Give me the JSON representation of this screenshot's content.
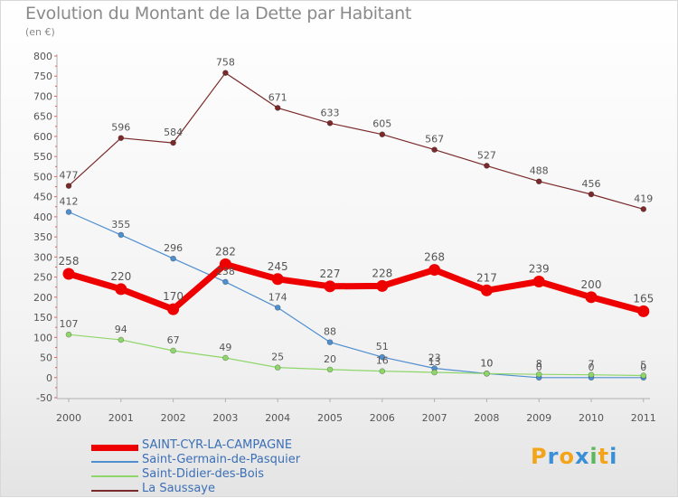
{
  "header": {
    "title": "Evolution du Montant de la Dette par Habitant",
    "unit": "(en €)"
  },
  "logo": {
    "letters": [
      "P",
      "r",
      "o",
      "x",
      "i",
      "t",
      "i"
    ],
    "colors": [
      "#f2a51a",
      "#3a8fd6",
      "#f2a51a",
      "#3a8fd6",
      "#5cb85c",
      "#f2a51a",
      "#3a8fd6"
    ]
  },
  "chart_data": {
    "type": "line",
    "title": "Evolution du Montant de la Dette par Habitant",
    "ylabel": "(en €)",
    "xlabel": "",
    "x": [
      "2000",
      "2001",
      "2002",
      "2003",
      "2004",
      "2005",
      "2006",
      "2007",
      "2008",
      "2009",
      "2010",
      "2011"
    ],
    "ylim": [
      -50,
      800
    ],
    "yticks": [
      -50,
      0,
      50,
      100,
      150,
      200,
      250,
      300,
      350,
      400,
      450,
      500,
      550,
      600,
      650,
      700,
      750,
      800
    ],
    "yticklabels": [
      "-50",
      "0",
      "50",
      "100",
      "150",
      "200",
      "250",
      "300",
      "350",
      "400",
      "450",
      "500",
      "550",
      "600",
      "650",
      "700",
      "750",
      "800"
    ],
    "grid": false,
    "legend_position": "bottom-left",
    "series": [
      {
        "name": "SAINT-CYR-LA-CAMPAGNE",
        "color": "#ee0000",
        "values": [
          258,
          220,
          170,
          282,
          245,
          227,
          228,
          268,
          217,
          239,
          200,
          165
        ],
        "labels": [
          "258",
          "220",
          "170",
          "282",
          "245",
          "227",
          "228",
          "268",
          "217",
          "239",
          "200",
          "165"
        ]
      },
      {
        "name": "Saint-Germain-de-Pasquier",
        "color": "#4f8fd0",
        "values": [
          412,
          355,
          296,
          238,
          174,
          88,
          51,
          23,
          10,
          0,
          0,
          0
        ],
        "labels": [
          "412",
          "355",
          "296",
          "238",
          "174",
          "88",
          "51",
          "23",
          "10",
          "0",
          "0",
          "0"
        ]
      },
      {
        "name": "Saint-Didier-des-Bois",
        "color": "#8ed66a",
        "values": [
          107,
          94,
          67,
          49,
          25,
          20,
          16,
          13,
          10,
          8,
          7,
          5
        ],
        "labels": [
          "107",
          "94",
          "67",
          "49",
          "25",
          "20",
          "16",
          "13",
          "10",
          "8",
          "7",
          "5"
        ]
      },
      {
        "name": "La Saussaye",
        "color": "#7a2a2a",
        "values": [
          477,
          596,
          584,
          758,
          671,
          633,
          605,
          567,
          527,
          488,
          456,
          419
        ],
        "labels": [
          "477",
          "596",
          "584",
          "758",
          "671",
          "633",
          "605",
          "567",
          "527",
          "488",
          "456",
          "419"
        ]
      }
    ]
  }
}
